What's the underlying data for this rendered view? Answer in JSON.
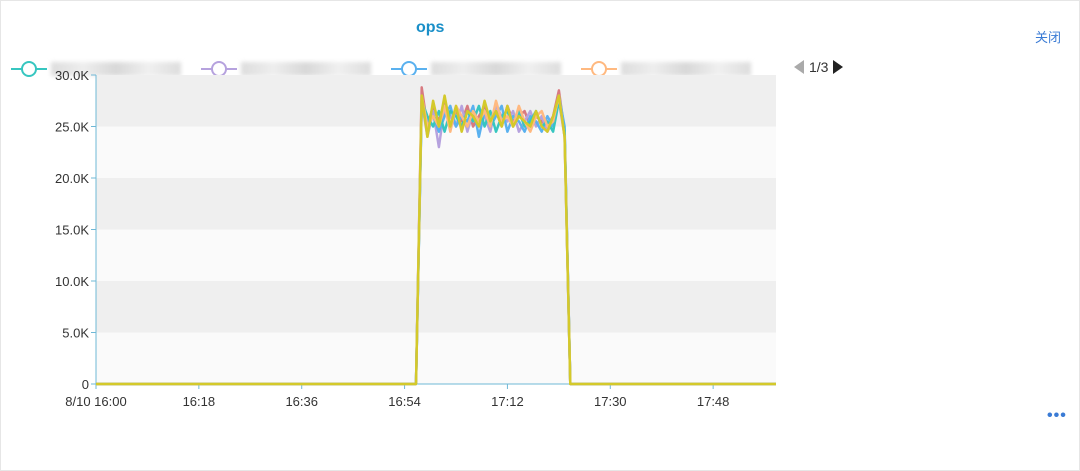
{
  "header": {
    "title": "ops",
    "close_label": "关闭",
    "more_label": "•••"
  },
  "legend": {
    "page": "1/3",
    "items": [
      {
        "color": "#37c6c0"
      },
      {
        "color": "#b6a2de"
      },
      {
        "color": "#5ab1ef"
      },
      {
        "color": "#ffb980"
      }
    ]
  },
  "chart_data": {
    "type": "line",
    "title": "ops",
    "x_ticks": [
      "8/10 16:00",
      "16:18",
      "16:36",
      "16:54",
      "17:12",
      "17:30",
      "17:48"
    ],
    "y_ticks": [
      "0",
      "5.0K",
      "10.0K",
      "15.0K",
      "20.0K",
      "25.0K",
      "30.0K"
    ],
    "ylim": [
      0,
      30000
    ],
    "xlim": [
      "16:00",
      "17:59"
    ],
    "grid": "horizontal-bands",
    "x": [
      "16:00",
      "16:56",
      "16:57",
      "16:58",
      "16:59",
      "17:00",
      "17:01",
      "17:02",
      "17:03",
      "17:04",
      "17:05",
      "17:06",
      "17:07",
      "17:08",
      "17:09",
      "17:10",
      "17:11",
      "17:12",
      "17:13",
      "17:14",
      "17:15",
      "17:16",
      "17:17",
      "17:18",
      "17:19",
      "17:20",
      "17:21",
      "17:22",
      "17:23",
      "17:59"
    ],
    "series": [
      {
        "color": "#d87a80",
        "values": [
          0,
          0,
          28800,
          25000,
          27000,
          25500,
          27500,
          25000,
          26500,
          25500,
          27000,
          25000,
          26000,
          27000,
          25500,
          26500,
          25000,
          27000,
          25500,
          26000,
          26500,
          25000,
          26000,
          25500,
          25000,
          26000,
          28500,
          24500,
          0,
          0
        ]
      },
      {
        "color": "#b6a2de",
        "values": [
          0,
          0,
          27500,
          24000,
          26500,
          23000,
          27000,
          26000,
          25000,
          27000,
          24500,
          26500,
          25500,
          26000,
          24500,
          27000,
          26000,
          25500,
          26500,
          24500,
          25500,
          26500,
          25000,
          26000,
          24500,
          25500,
          27500,
          24000,
          0,
          0
        ]
      },
      {
        "color": "#5ab1ef",
        "values": [
          0,
          0,
          27000,
          25500,
          26000,
          24500,
          26000,
          27000,
          25000,
          26000,
          25500,
          27000,
          24000,
          26500,
          25000,
          26000,
          27000,
          24500,
          26000,
          25500,
          24500,
          26000,
          25500,
          24500,
          26000,
          25000,
          28000,
          25000,
          0,
          0
        ]
      },
      {
        "color": "#37c6c0",
        "values": [
          0,
          0,
          27500,
          26000,
          25000,
          26500,
          24500,
          26500,
          26000,
          25000,
          26500,
          25500,
          27000,
          25000,
          26500,
          24500,
          26000,
          26500,
          25000,
          26500,
          25000,
          25500,
          26500,
          25000,
          25500,
          24500,
          27500,
          24500,
          0,
          0
        ]
      },
      {
        "color": "#ffb980",
        "values": [
          0,
          0,
          28000,
          25000,
          26000,
          25000,
          27000,
          24500,
          27000,
          26000,
          25000,
          26500,
          25500,
          26500,
          25000,
          27500,
          25500,
          26000,
          25000,
          27000,
          25500,
          24500,
          26000,
          26500,
          25000,
          25500,
          28000,
          24000,
          0,
          0
        ]
      },
      {
        "color": "#d4c92a",
        "values": [
          0,
          0,
          28000,
          24000,
          27500,
          25000,
          28000,
          25000,
          27000,
          24500,
          26500,
          26000,
          25000,
          27500,
          25500,
          26500,
          25000,
          27000,
          25000,
          26000,
          25500,
          25000,
          26500,
          25000,
          24500,
          26000,
          28000,
          24000,
          0,
          0
        ]
      }
    ]
  }
}
